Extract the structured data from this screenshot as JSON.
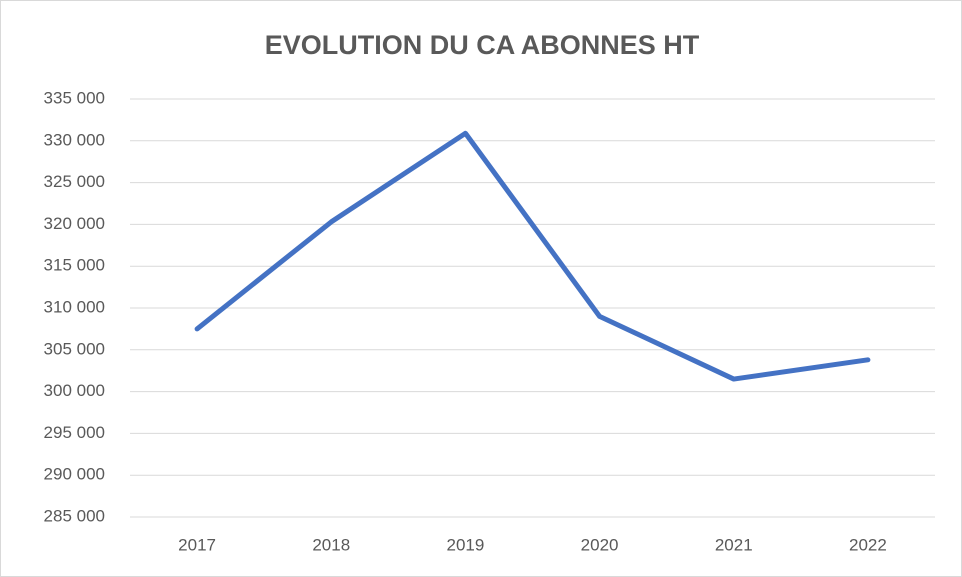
{
  "chart_data": {
    "type": "line",
    "title": "EVOLUTION DU CA ABONNES HT",
    "categories": [
      "2017",
      "2018",
      "2019",
      "2020",
      "2021",
      "2022"
    ],
    "series": [
      {
        "name": "CA abonnés HT",
        "color": "#4472c4",
        "values": [
          307500,
          320300,
          330900,
          309000,
          301500,
          303800
        ]
      }
    ],
    "ylim": [
      285000,
      335000
    ],
    "yticks": [
      {
        "value": 285000,
        "label": "285 000"
      },
      {
        "value": 290000,
        "label": "290 000"
      },
      {
        "value": 295000,
        "label": "295 000"
      },
      {
        "value": 300000,
        "label": "300 000"
      },
      {
        "value": 305000,
        "label": "305 000"
      },
      {
        "value": 310000,
        "label": "310 000"
      },
      {
        "value": 315000,
        "label": "315 000"
      },
      {
        "value": 320000,
        "label": "320 000"
      },
      {
        "value": 325000,
        "label": "325 000"
      },
      {
        "value": 330000,
        "label": "330 000"
      },
      {
        "value": 335000,
        "label": "335 000"
      }
    ],
    "grid": true,
    "legend": false
  }
}
